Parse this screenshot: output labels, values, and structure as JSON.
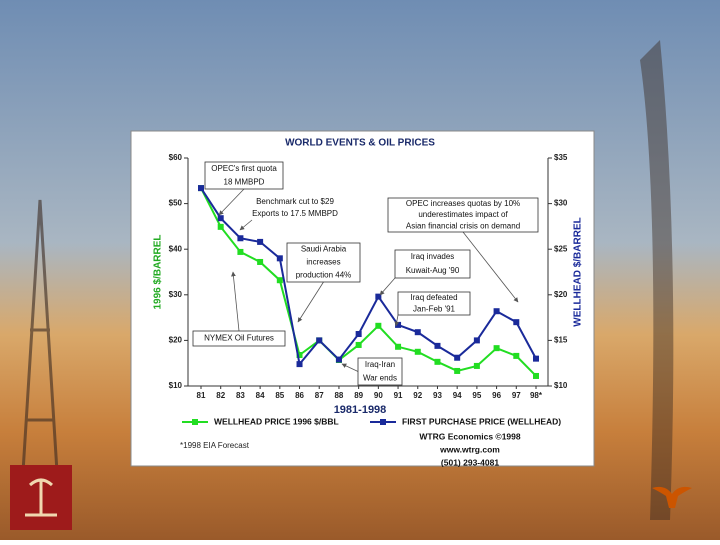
{
  "chart_data": {
    "type": "line",
    "title": "WORLD EVENTS & OIL PRICES",
    "x_label": "1981-1998",
    "y_label": "1996 $/BARREL",
    "y2_label": "WELLHEAD $/BARREL",
    "categories": [
      "81",
      "82",
      "83",
      "84",
      "85",
      "86",
      "87",
      "88",
      "89",
      "90",
      "91",
      "92",
      "93",
      "94",
      "95",
      "96",
      "97",
      "98*"
    ],
    "ylim": [
      10,
      60
    ],
    "yticks": [
      {
        "value": 10,
        "label": "$10"
      },
      {
        "value": 20,
        "label": "$20"
      },
      {
        "value": 30,
        "label": "$30"
      },
      {
        "value": 40,
        "label": "$40"
      },
      {
        "value": 50,
        "label": "$50"
      },
      {
        "value": 60,
        "label": "$60"
      }
    ],
    "y2lim": [
      10,
      35
    ],
    "y2ticks": [
      {
        "value": 10,
        "label": "$10"
      },
      {
        "value": 15,
        "label": "$15"
      },
      {
        "value": 20,
        "label": "$20"
      },
      {
        "value": 25,
        "label": "$25"
      },
      {
        "value": 30,
        "label": "$30"
      },
      {
        "value": 35,
        "label": "$35"
      }
    ],
    "grid": false,
    "series": [
      {
        "name": "WELLHEAD PRICE 1996 $/BBL",
        "color": "#22dd22",
        "axis": "y",
        "values": [
          53.4,
          44.9,
          39.4,
          37.2,
          33.2,
          16.8,
          20,
          15.7,
          19,
          23.2,
          18.6,
          17.5,
          15.3,
          13.3,
          14.4,
          18.3,
          16.6,
          12.2
        ]
      },
      {
        "name": "FIRST PURCHASE PRICE (WELLHEAD)",
        "color": "#1a2a9a",
        "axis": "y2",
        "values": [
          31.7,
          28.4,
          26.2,
          25.8,
          24,
          12.4,
          15,
          12.9,
          15.7,
          19.8,
          16.7,
          15.9,
          14.4,
          13.1,
          15,
          18.2,
          17,
          13
        ]
      }
    ],
    "annotations": [
      {
        "lines": [
          "OPEC's first quota",
          "18 MMBPD"
        ]
      },
      {
        "lines": [
          "Benchmark cut to $29",
          "Exports  to 17.5 MMBPD"
        ]
      },
      {
        "lines": [
          "OPEC increases quotas by 10%",
          "underestimates impact of",
          "Asian financial crisis on demand"
        ]
      },
      {
        "lines": [
          "Saudi Arabia",
          "increases",
          "production 44%"
        ]
      },
      {
        "lines": [
          "Iraq invades",
          "Kuwait-Aug '90"
        ]
      },
      {
        "lines": [
          "Iraq defeated",
          "Jan-Feb '91"
        ]
      },
      {
        "lines": [
          "NYMEX Oil Futures"
        ]
      },
      {
        "lines": [
          "Iraq-Iran",
          "War ends"
        ]
      }
    ],
    "footnote": "*1998 EIA Forecast",
    "credits": [
      "WTRG Economics ©1998",
      "www.wtrg.com",
      "(501) 293-4081"
    ]
  }
}
